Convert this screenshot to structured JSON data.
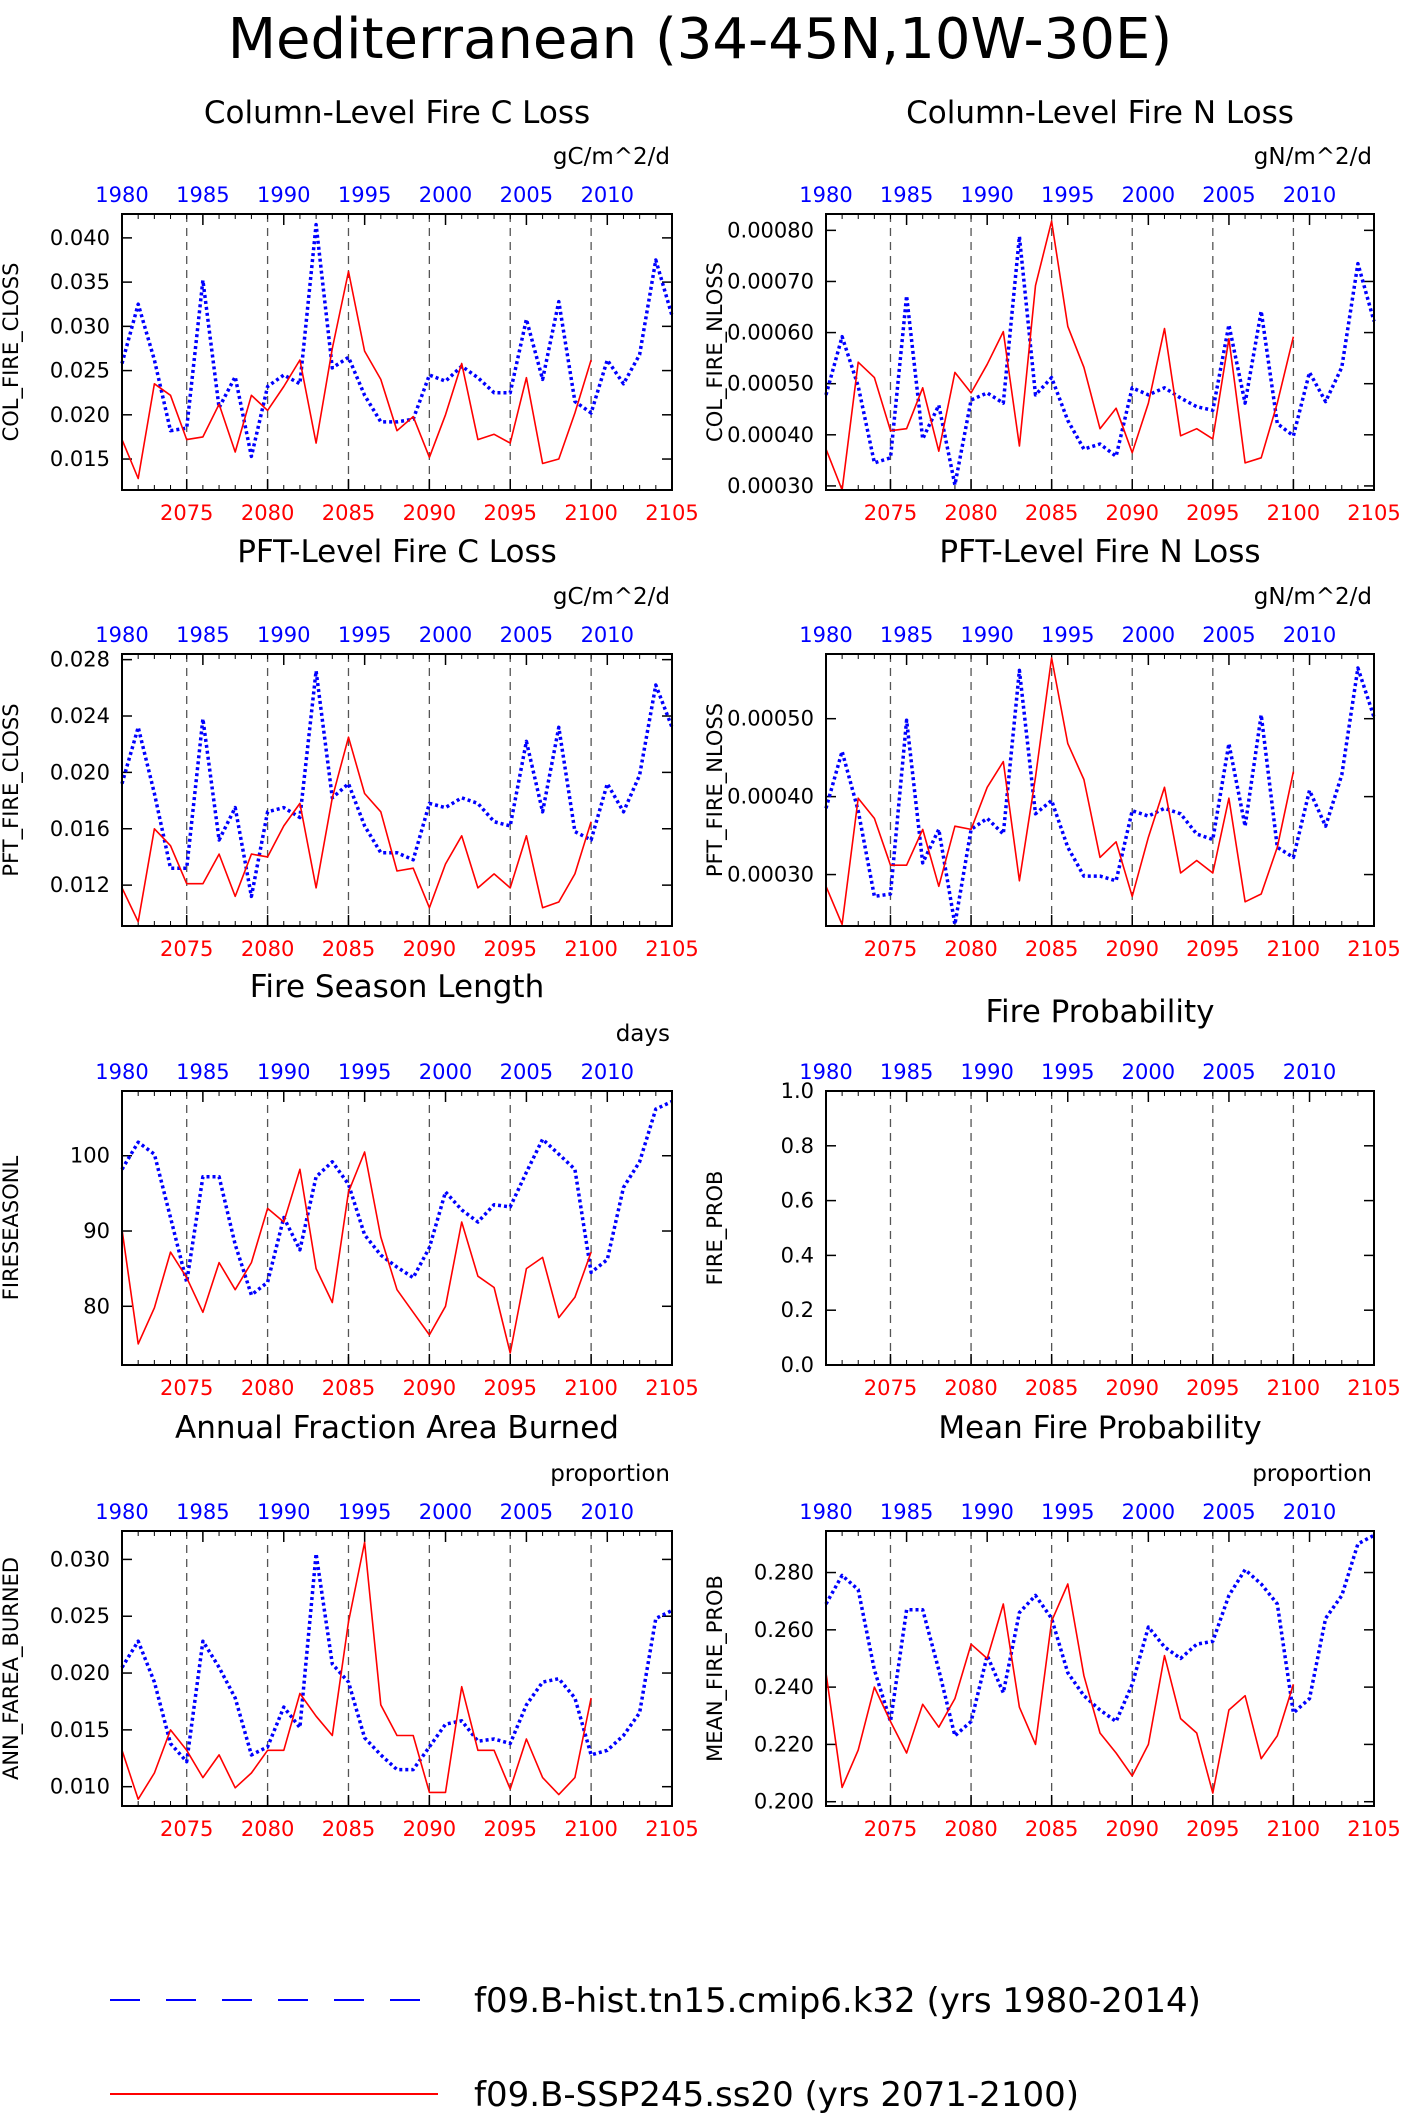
{
  "title": "Mediterranean (34-45N,10W-30E)",
  "colors": {
    "hist": "#0000ff",
    "ssp": "#ff0000",
    "axis": "#000000",
    "guide": "#555555"
  },
  "legend": [
    {
      "label": "f09.B-hist.tn15.cmip6.k32 (yrs 1980-2014)",
      "color": "#0000ff",
      "style": "dashed"
    },
    {
      "label": "f09.B-SSP245.ss20 (yrs 2071-2100)",
      "color": "#ff0000",
      "style": "solid"
    }
  ],
  "chart_data": [
    {
      "type": "line",
      "title": "Column-Level Fire C Loss",
      "ylabel": "COL_FIRE_CLOSS",
      "units": "gC/m^2/d",
      "ylim": [
        0.0115,
        0.0427
      ],
      "yticks": [
        0.015,
        0.02,
        0.025,
        0.03,
        0.035,
        0.04
      ],
      "ytick_labels": [
        "0.015",
        "0.020",
        "0.025",
        "0.030",
        "0.035",
        "0.040"
      ],
      "x_top": {
        "range": [
          1980,
          2014
        ],
        "ticks": [
          1980,
          1985,
          1990,
          1995,
          2000,
          2005,
          2010
        ]
      },
      "x_bottom": {
        "range": [
          2071,
          2105
        ],
        "ticks": [
          2075,
          2080,
          2085,
          2090,
          2095,
          2100,
          2105
        ]
      },
      "series": [
        {
          "name": "f09.B-hist.tn15.cmip6.k32",
          "x_axis": "top",
          "values": [
            0.0258,
            0.0325,
            0.0262,
            0.0182,
            0.0185,
            0.0352,
            0.0208,
            0.0243,
            0.0153,
            0.0232,
            0.0245,
            0.0235,
            0.0415,
            0.0253,
            0.0265,
            0.0222,
            0.0192,
            0.0192,
            0.0195,
            0.0245,
            0.0238,
            0.0255,
            0.0242,
            0.0225,
            0.0225,
            0.0308,
            0.024,
            0.0328,
            0.0215,
            0.0202,
            0.0262,
            0.0235,
            0.0268,
            0.0375,
            0.0312
          ]
        },
        {
          "name": "f09.B-SSP245.ss20",
          "x_axis": "bottom",
          "values": [
            0.0172,
            0.0128,
            0.0235,
            0.0222,
            0.0172,
            0.0175,
            0.0212,
            0.0158,
            0.0222,
            0.0205,
            0.0232,
            0.0262,
            0.0168,
            0.0275,
            0.0362,
            0.0272,
            0.024,
            0.0182,
            0.0198,
            0.0152,
            0.02,
            0.0258,
            0.0172,
            0.0178,
            0.0168,
            0.0242,
            0.0145,
            0.015,
            0.0202,
            0.0262
          ]
        }
      ]
    },
    {
      "type": "line",
      "title": "Column-Level Fire N Loss",
      "ylabel": "COL_FIRE_NLOSS",
      "units": "gN/m^2/d",
      "ylim": [
        0.000292,
        0.000832
      ],
      "yticks": [
        0.0003,
        0.0004,
        0.0005,
        0.0006,
        0.0007,
        0.0008
      ],
      "ytick_labels": [
        "0.00030",
        "0.00040",
        "0.00050",
        "0.00060",
        "0.00070",
        "0.00080"
      ],
      "x_top": {
        "range": [
          1980,
          2014
        ],
        "ticks": [
          1980,
          1985,
          1990,
          1995,
          2000,
          2005,
          2010
        ]
      },
      "x_bottom": {
        "range": [
          2071,
          2105
        ],
        "ticks": [
          2075,
          2080,
          2085,
          2090,
          2095,
          2100,
          2105
        ]
      },
      "series": [
        {
          "name": "f09.B-hist.tn15.cmip6.k32",
          "x_axis": "top",
          "values": [
            0.000478,
            0.000592,
            0.000495,
            0.000345,
            0.000355,
            0.000672,
            0.000392,
            0.000458,
            0.000302,
            0.000468,
            0.000482,
            0.000462,
            0.000788,
            0.000478,
            0.000512,
            0.000428,
            0.000372,
            0.000382,
            0.000358,
            0.000492,
            0.000478,
            0.000492,
            0.000472,
            0.000455,
            0.000448,
            0.000615,
            0.000462,
            0.000642,
            0.000422,
            0.000398,
            0.000522,
            0.000465,
            0.000532,
            0.000735,
            0.000622
          ]
        },
        {
          "name": "f09.B-SSP245.ss20",
          "x_axis": "bottom",
          "values": [
            0.000372,
            0.000292,
            0.000542,
            0.000512,
            0.000408,
            0.000412,
            0.000492,
            0.000368,
            0.000522,
            0.000482,
            0.000538,
            0.000602,
            0.000378,
            0.000692,
            0.000818,
            0.000612,
            0.000532,
            0.000412,
            0.000452,
            0.000365,
            0.000462,
            0.000608,
            0.000398,
            0.000412,
            0.000392,
            0.000588,
            0.000345,
            0.000355,
            0.000462,
            0.000592
          ]
        }
      ]
    },
    {
      "type": "line",
      "title": "PFT-Level Fire C Loss",
      "ylabel": "PFT_FIRE_CLOSS",
      "units": "gC/m^2/d",
      "ylim": [
        0.0091,
        0.0284
      ],
      "yticks": [
        0.012,
        0.016,
        0.02,
        0.024,
        0.028
      ],
      "ytick_labels": [
        "0.012",
        "0.016",
        "0.020",
        "0.024",
        "0.028"
      ],
      "x_top": {
        "range": [
          1980,
          2014
        ],
        "ticks": [
          1980,
          1985,
          1990,
          1995,
          2000,
          2005,
          2010
        ]
      },
      "x_bottom": {
        "range": [
          2071,
          2105
        ],
        "ticks": [
          2075,
          2080,
          2085,
          2090,
          2095,
          2100,
          2105
        ]
      },
      "series": [
        {
          "name": "f09.B-hist.tn15.cmip6.k32",
          "x_axis": "top",
          "values": [
            0.0192,
            0.0232,
            0.0185,
            0.0132,
            0.0132,
            0.0238,
            0.0152,
            0.0175,
            0.0112,
            0.0172,
            0.0175,
            0.0168,
            0.0272,
            0.0182,
            0.0192,
            0.0162,
            0.0143,
            0.0143,
            0.0138,
            0.0178,
            0.0175,
            0.0182,
            0.0178,
            0.0165,
            0.0162,
            0.0222,
            0.0172,
            0.0232,
            0.0158,
            0.0152,
            0.0192,
            0.0172,
            0.0198,
            0.0262,
            0.0232
          ]
        },
        {
          "name": "f09.B-SSP245.ss20",
          "x_axis": "bottom",
          "values": [
            0.0118,
            0.0094,
            0.016,
            0.0148,
            0.0121,
            0.0121,
            0.0142,
            0.0112,
            0.0142,
            0.014,
            0.0162,
            0.0178,
            0.0118,
            0.0182,
            0.0225,
            0.0185,
            0.0172,
            0.013,
            0.0132,
            0.0104,
            0.0135,
            0.0155,
            0.0118,
            0.0128,
            0.0118,
            0.0155,
            0.0104,
            0.0108,
            0.0128,
            0.0165
          ]
        }
      ]
    },
    {
      "type": "line",
      "title": "PFT-Level Fire N Loss",
      "ylabel": "PFT_FIRE_NLOSS",
      "units": "gN/m^2/d",
      "ylim": [
        0.000234,
        0.000583
      ],
      "yticks": [
        0.0003,
        0.0004,
        0.0005
      ],
      "ytick_labels": [
        "0.00030",
        "0.00040",
        "0.00050"
      ],
      "x_top": {
        "range": [
          1980,
          2014
        ],
        "ticks": [
          1980,
          1985,
          1990,
          1995,
          2000,
          2005,
          2010
        ]
      },
      "x_bottom": {
        "range": [
          2071,
          2105
        ],
        "ticks": [
          2075,
          2080,
          2085,
          2090,
          2095,
          2100,
          2105
        ]
      },
      "series": [
        {
          "name": "f09.B-hist.tn15.cmip6.k32",
          "x_axis": "top",
          "values": [
            0.000385,
            0.000458,
            0.000382,
            0.000272,
            0.000275,
            0.000498,
            0.000315,
            0.000358,
            0.000236,
            0.000358,
            0.000372,
            0.000352,
            0.000562,
            0.000378,
            0.000395,
            0.000335,
            0.000298,
            0.000298,
            0.000292,
            0.000382,
            0.000375,
            0.000385,
            0.000378,
            0.000352,
            0.000345,
            0.000468,
            0.000362,
            0.000505,
            0.000335,
            0.000322,
            0.000408,
            0.000362,
            0.000428,
            0.000565,
            0.000502
          ]
        },
        {
          "name": "f09.B-SSP245.ss20",
          "x_axis": "bottom",
          "values": [
            0.000285,
            0.000236,
            0.000398,
            0.000372,
            0.000312,
            0.000312,
            0.000358,
            0.000285,
            0.000362,
            0.000358,
            0.000412,
            0.000445,
            0.000292,
            0.000425,
            0.000578,
            0.000468,
            0.000422,
            0.000322,
            0.000342,
            0.000272,
            0.000348,
            0.000412,
            0.000302,
            0.000318,
            0.000302,
            0.000398,
            0.000265,
            0.000275,
            0.000335,
            0.000432
          ]
        }
      ]
    },
    {
      "type": "line",
      "title": "Fire Season Length",
      "ylabel": "FIRESEASONL",
      "units": "days",
      "ylim": [
        72.2,
        108.6
      ],
      "yticks": [
        80,
        90,
        100
      ],
      "ytick_labels": [
        "80",
        "90",
        "100"
      ],
      "x_top": {
        "range": [
          1980,
          2014
        ],
        "ticks": [
          1980,
          1985,
          1990,
          1995,
          2000,
          2005,
          2010
        ]
      },
      "x_bottom": {
        "range": [
          2071,
          2105
        ],
        "ticks": [
          2075,
          2080,
          2085,
          2090,
          2095,
          2100,
          2105
        ]
      },
      "series": [
        {
          "name": "f09.B-hist.tn15.cmip6.k32",
          "x_axis": "top",
          "values": [
            98.2,
            101.8,
            100.2,
            91.8,
            83.2,
            97.2,
            97.2,
            88.2,
            81.5,
            83.2,
            91.8,
            87.5,
            97.2,
            99.2,
            96.2,
            89.5,
            86.8,
            85.2,
            83.8,
            87.8,
            95.2,
            92.8,
            91.2,
            93.5,
            93.2,
            97.8,
            102.2,
            100.2,
            98.2,
            84.5,
            86.2,
            95.8,
            99.2,
            106.2,
            107.2
          ]
        },
        {
          "name": "f09.B-SSP245.ss20",
          "x_axis": "bottom",
          "values": [
            90.2,
            75.0,
            79.8,
            87.2,
            83.8,
            79.2,
            85.8,
            82.2,
            85.8,
            93.0,
            91.2,
            98.2,
            85.0,
            80.5,
            95.2,
            100.5,
            89.2,
            82.2,
            79.2,
            76.2,
            80.0,
            91.2,
            84.0,
            82.5,
            73.8,
            85.0,
            86.5,
            78.5,
            81.2,
            87.2
          ]
        }
      ]
    },
    {
      "type": "line",
      "title": "Fire Probability",
      "ylabel": "FIRE_PROB",
      "units": "",
      "ylim": [
        0.0,
        1.0
      ],
      "yticks": [
        0.0,
        0.2,
        0.4,
        0.6,
        0.8,
        1.0
      ],
      "ytick_labels": [
        "0.0",
        "0.2",
        "0.4",
        "0.6",
        "0.8",
        "1.0"
      ],
      "x_top": {
        "range": [
          1980,
          2014
        ],
        "ticks": [
          1980,
          1985,
          1990,
          1995,
          2000,
          2005,
          2010
        ]
      },
      "x_bottom": {
        "range": [
          2071,
          2105
        ],
        "ticks": [
          2075,
          2080,
          2085,
          2090,
          2095,
          2100,
          2105
        ]
      },
      "series": []
    },
    {
      "type": "line",
      "title": "Annual Fraction Area Burned",
      "ylabel": "ANN_FAREA_BURNED",
      "units": "proportion",
      "ylim": [
        0.0083,
        0.0325
      ],
      "yticks": [
        0.01,
        0.015,
        0.02,
        0.025,
        0.03
      ],
      "ytick_labels": [
        "0.010",
        "0.015",
        "0.020",
        "0.025",
        "0.030"
      ],
      "x_top": {
        "range": [
          1980,
          2014
        ],
        "ticks": [
          1980,
          1985,
          1990,
          1995,
          2000,
          2005,
          2010
        ]
      },
      "x_bottom": {
        "range": [
          2071,
          2105
        ],
        "ticks": [
          2075,
          2080,
          2085,
          2090,
          2095,
          2100,
          2105
        ]
      },
      "series": [
        {
          "name": "f09.B-hist.tn15.cmip6.k32",
          "x_axis": "top",
          "values": [
            0.0205,
            0.0228,
            0.0192,
            0.0138,
            0.0122,
            0.0228,
            0.0205,
            0.0178,
            0.0128,
            0.0135,
            0.017,
            0.0152,
            0.0305,
            0.0208,
            0.0192,
            0.0143,
            0.0128,
            0.0115,
            0.0115,
            0.0135,
            0.0155,
            0.0158,
            0.014,
            0.0142,
            0.0138,
            0.0172,
            0.0192,
            0.0195,
            0.0178,
            0.0128,
            0.0132,
            0.0145,
            0.0165,
            0.0248,
            0.0255
          ]
        },
        {
          "name": "f09.B-SSP245.ss20",
          "x_axis": "bottom",
          "values": [
            0.0132,
            0.0089,
            0.0112,
            0.015,
            0.0132,
            0.0108,
            0.0128,
            0.0099,
            0.0112,
            0.0132,
            0.0132,
            0.0182,
            0.0162,
            0.0145,
            0.0245,
            0.0315,
            0.0172,
            0.0145,
            0.0145,
            0.0095,
            0.0095,
            0.0188,
            0.0132,
            0.0132,
            0.0098,
            0.0142,
            0.0108,
            0.0093,
            0.0108,
            0.0178
          ]
        }
      ]
    },
    {
      "type": "line",
      "title": "Mean Fire Probability",
      "ylabel": "MEAN_FIRE_PROB",
      "units": "proportion",
      "ylim": [
        0.1985,
        0.2945
      ],
      "yticks": [
        0.2,
        0.22,
        0.24,
        0.26,
        0.28
      ],
      "ytick_labels": [
        "0.200",
        "0.220",
        "0.240",
        "0.260",
        "0.280"
      ],
      "x_top": {
        "range": [
          1980,
          2014
        ],
        "ticks": [
          1980,
          1985,
          1990,
          1995,
          2000,
          2005,
          2010
        ]
      },
      "x_bottom": {
        "range": [
          2071,
          2105
        ],
        "ticks": [
          2075,
          2080,
          2085,
          2090,
          2095,
          2100,
          2105
        ]
      },
      "series": [
        {
          "name": "f09.B-hist.tn15.cmip6.k32",
          "x_axis": "top",
          "values": [
            0.269,
            0.279,
            0.274,
            0.246,
            0.228,
            0.267,
            0.267,
            0.246,
            0.223,
            0.228,
            0.251,
            0.238,
            0.266,
            0.272,
            0.264,
            0.245,
            0.237,
            0.232,
            0.228,
            0.241,
            0.261,
            0.254,
            0.25,
            0.255,
            0.256,
            0.272,
            0.281,
            0.276,
            0.269,
            0.231,
            0.236,
            0.264,
            0.272,
            0.29,
            0.293
          ]
        },
        {
          "name": "f09.B-SSP245.ss20",
          "x_axis": "bottom",
          "values": [
            0.245,
            0.205,
            0.218,
            0.24,
            0.228,
            0.217,
            0.234,
            0.226,
            0.236,
            0.255,
            0.25,
            0.269,
            0.233,
            0.22,
            0.263,
            0.276,
            0.244,
            0.224,
            0.217,
            0.209,
            0.22,
            0.251,
            0.229,
            0.224,
            0.203,
            0.232,
            0.237,
            0.215,
            0.223,
            0.241
          ]
        }
      ]
    }
  ]
}
